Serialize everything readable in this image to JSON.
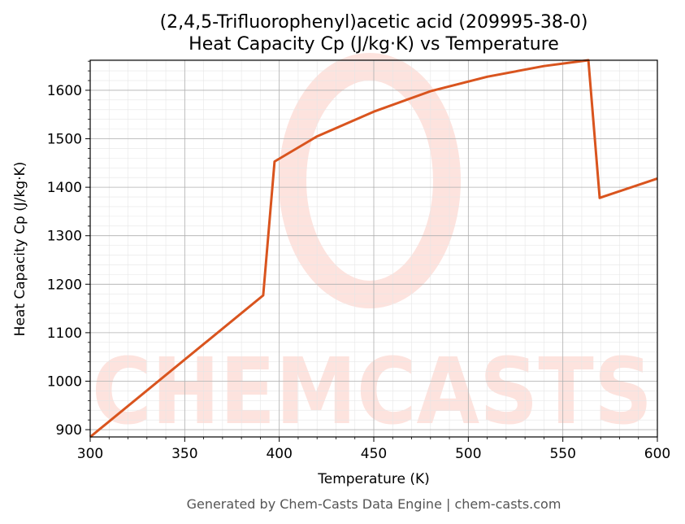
{
  "chart_data": {
    "type": "line",
    "title_line1": "(2,4,5-Trifluorophenyl)acetic acid (209995-38-0)",
    "title_line2": "Heat Capacity Cp (J/kg·K) vs Temperature",
    "xlabel": "Temperature (K)",
    "ylabel": "Heat Capacity Cp (J/kg·K)",
    "xlim": [
      300,
      600
    ],
    "ylim": [
      885,
      1662
    ],
    "xticks": [
      300,
      350,
      400,
      450,
      500,
      550,
      600
    ],
    "yticks": [
      900,
      1000,
      1100,
      1200,
      1300,
      1400,
      1500,
      1600
    ],
    "grid": true,
    "series": [
      {
        "color": "#d9541e",
        "x": [
          300,
          391.5,
          397.5,
          420,
          450,
          480,
          510,
          540,
          563.5,
          569.5,
          600
        ],
        "y": [
          885,
          1177,
          1453,
          1505,
          1556,
          1598,
          1628,
          1650,
          1662,
          1378,
          1418
        ]
      }
    ]
  },
  "watermark": {
    "text": "CHEMCASTS",
    "color": "#fde3de"
  },
  "footer": "Generated by Chem-Casts Data Engine | chem-casts.com"
}
